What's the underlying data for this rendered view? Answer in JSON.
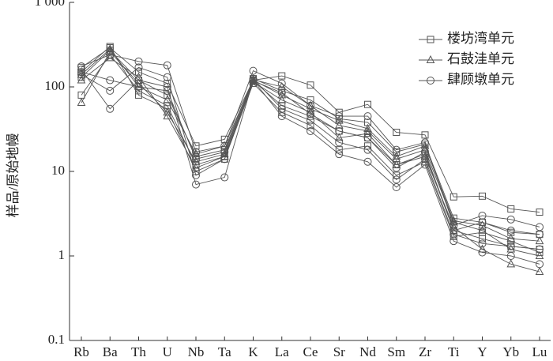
{
  "chart_data": {
    "type": "spider",
    "log_scale": true,
    "y_label": "样品/原始地幔",
    "categories": [
      "Rb",
      "Ba",
      "Th",
      "U",
      "Nb",
      "Ta",
      "K",
      "La",
      "Ce",
      "Sr",
      "Nd",
      "Sm",
      "Zr",
      "Ti",
      "Y",
      "Yb",
      "Lu"
    ],
    "ylim": [
      0.1,
      1000
    ],
    "yticks": [
      0.1,
      1,
      10,
      100,
      {
        "value": 1000,
        "label": "1 000"
      }
    ],
    "legend": "upper right",
    "series": [
      {
        "name": "楼坊湾单元",
        "marker": "square",
        "color": "#555555",
        "samples": [
          [
            170,
            290,
            150,
            110,
            20,
            24,
            120,
            135,
            105,
            50,
            62,
            29,
            27,
            5,
            5.1,
            3.6,
            3.3
          ],
          [
            130,
            270,
            120,
            80,
            15,
            18,
            125,
            90,
            70,
            42,
            38,
            17,
            21,
            2.8,
            2.5,
            1.9,
            1.8
          ],
          [
            80,
            240,
            90,
            60,
            12,
            15,
            118,
            60,
            45,
            30,
            25,
            12,
            16,
            2.0,
            1.6,
            1.3,
            1.2
          ],
          [
            150,
            300,
            80,
            55,
            10,
            14,
            110,
            50,
            35,
            18,
            20,
            9,
            13,
            1.7,
            1.9,
            1.5,
            1.1
          ]
        ]
      },
      {
        "name": "石鼓洼单元",
        "marker": "triangle",
        "color": "#555555",
        "samples": [
          [
            65,
            260,
            110,
            50,
            13,
            16,
            122,
            100,
            60,
            35,
            30,
            14,
            18,
            2.5,
            2.0,
            1.2,
            1.0
          ],
          [
            120,
            220,
            130,
            45,
            11,
            15,
            115,
            70,
            50,
            25,
            28,
            12,
            15,
            2.2,
            1.2,
            0.8,
            0.65
          ],
          [
            140,
            280,
            100,
            70,
            16,
            20,
            120,
            80,
            55,
            40,
            32,
            15,
            20,
            2.6,
            2.3,
            1.6,
            1.5
          ]
        ]
      },
      {
        "name": "肆顾墩单元",
        "marker": "circle",
        "color": "#555555",
        "samples": [
          [
            175,
            240,
            200,
            180,
            17,
            20,
            155,
            110,
            60,
            45,
            45,
            18,
            22,
            2.3,
            3.0,
            2.7,
            2.2
          ],
          [
            160,
            55,
            120,
            100,
            7,
            8.5,
            120,
            45,
            30,
            16,
            13,
            6.5,
            12,
            1.5,
            1.1,
            1.0,
            0.8
          ],
          [
            140,
            90,
            170,
            130,
            9,
            14,
            125,
            55,
            40,
            22,
            18,
            8,
            14,
            1.8,
            1.4,
            1.3,
            1.2
          ],
          [
            150,
            120,
            100,
            90,
            14,
            17,
            118,
            85,
            48,
            30,
            25,
            11,
            17,
            2.0,
            2.5,
            2.0,
            1.8
          ]
        ]
      }
    ]
  }
}
